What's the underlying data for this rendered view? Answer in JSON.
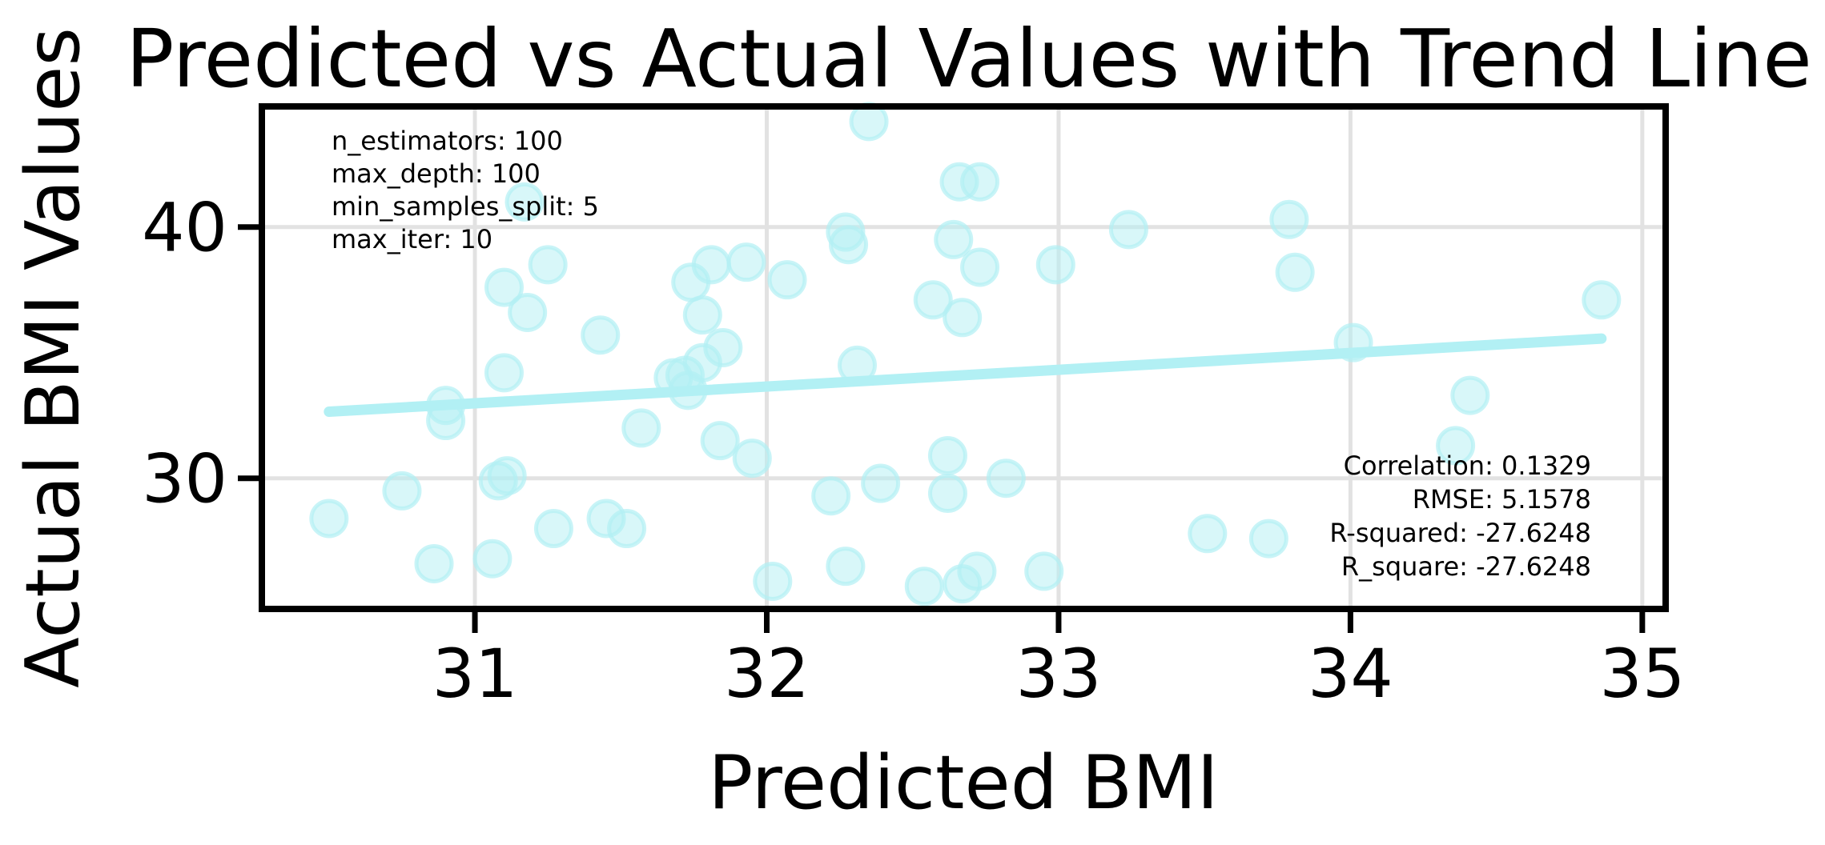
{
  "chart_data": {
    "type": "scatter",
    "title": "Predicted vs Actual Values with Trend Line",
    "xlabel": "Predicted BMI",
    "ylabel": "Actual BMI Values",
    "xlim": [
      30.27,
      35.08
    ],
    "ylim": [
      24.8,
      44.8
    ],
    "xticks": [
      {
        "value": 31,
        "label": "31"
      },
      {
        "value": 32,
        "label": "32"
      },
      {
        "value": 33,
        "label": "33"
      },
      {
        "value": 34,
        "label": "34"
      },
      {
        "value": 35,
        "label": "35"
      }
    ],
    "yticks": [
      {
        "value": 30,
        "label": "30"
      },
      {
        "value": 40,
        "label": "40"
      }
    ],
    "grid": true,
    "point_color": "#b2f0f4",
    "line_color": "#b2f0f4",
    "points": [
      {
        "x": 30.5,
        "y": 28.4
      },
      {
        "x": 30.75,
        "y": 29.5
      },
      {
        "x": 30.86,
        "y": 26.6
      },
      {
        "x": 30.9,
        "y": 32.3
      },
      {
        "x": 30.9,
        "y": 32.9
      },
      {
        "x": 31.06,
        "y": 26.8
      },
      {
        "x": 31.08,
        "y": 29.9
      },
      {
        "x": 31.11,
        "y": 30.1
      },
      {
        "x": 31.1,
        "y": 34.2
      },
      {
        "x": 31.1,
        "y": 37.6
      },
      {
        "x": 31.18,
        "y": 36.6
      },
      {
        "x": 31.17,
        "y": 41.0
      },
      {
        "x": 31.25,
        "y": 38.5
      },
      {
        "x": 31.27,
        "y": 28.0
      },
      {
        "x": 31.43,
        "y": 35.7
      },
      {
        "x": 31.45,
        "y": 28.4
      },
      {
        "x": 31.52,
        "y": 28.0
      },
      {
        "x": 31.57,
        "y": 32.0
      },
      {
        "x": 31.68,
        "y": 34.0
      },
      {
        "x": 31.72,
        "y": 34.1
      },
      {
        "x": 31.73,
        "y": 33.5
      },
      {
        "x": 31.74,
        "y": 37.8
      },
      {
        "x": 31.78,
        "y": 36.5
      },
      {
        "x": 31.78,
        "y": 34.6
      },
      {
        "x": 31.81,
        "y": 38.5
      },
      {
        "x": 31.84,
        "y": 31.5
      },
      {
        "x": 31.85,
        "y": 35.2
      },
      {
        "x": 31.93,
        "y": 38.6
      },
      {
        "x": 31.95,
        "y": 30.8
      },
      {
        "x": 32.02,
        "y": 25.9
      },
      {
        "x": 32.07,
        "y": 37.9
      },
      {
        "x": 32.22,
        "y": 29.3
      },
      {
        "x": 32.27,
        "y": 26.5
      },
      {
        "x": 32.27,
        "y": 39.8
      },
      {
        "x": 32.28,
        "y": 39.3
      },
      {
        "x": 32.31,
        "y": 34.5
      },
      {
        "x": 32.35,
        "y": 44.2
      },
      {
        "x": 32.39,
        "y": 29.8
      },
      {
        "x": 32.54,
        "y": 25.7
      },
      {
        "x": 32.57,
        "y": 37.1
      },
      {
        "x": 32.62,
        "y": 30.9
      },
      {
        "x": 32.62,
        "y": 29.4
      },
      {
        "x": 32.64,
        "y": 39.5
      },
      {
        "x": 32.66,
        "y": 41.8
      },
      {
        "x": 32.67,
        "y": 36.4
      },
      {
        "x": 32.67,
        "y": 25.8
      },
      {
        "x": 32.72,
        "y": 26.3
      },
      {
        "x": 32.73,
        "y": 41.8
      },
      {
        "x": 32.73,
        "y": 38.4
      },
      {
        "x": 32.82,
        "y": 30.0
      },
      {
        "x": 32.95,
        "y": 26.3
      },
      {
        "x": 32.99,
        "y": 38.5
      },
      {
        "x": 33.24,
        "y": 39.9
      },
      {
        "x": 33.51,
        "y": 27.8
      },
      {
        "x": 33.72,
        "y": 27.6
      },
      {
        "x": 33.79,
        "y": 40.3
      },
      {
        "x": 33.81,
        "y": 38.2
      },
      {
        "x": 34.01,
        "y": 35.4
      },
      {
        "x": 34.36,
        "y": 31.3
      },
      {
        "x": 34.41,
        "y": 33.3
      },
      {
        "x": 34.86,
        "y": 37.1
      }
    ],
    "trend_line": {
      "x": [
        30.5,
        34.86
      ],
      "y": [
        32.65,
        35.56
      ]
    },
    "params_lines": [
      "n_estimators: 100",
      "max_depth: 100",
      "min_samples_split: 5",
      "max_iter: 10"
    ],
    "stats_lines": [
      "Correlation: 0.1329",
      "RMSE: 5.1578",
      "R-squared: -27.6248",
      "R_square: -27.6248"
    ]
  }
}
